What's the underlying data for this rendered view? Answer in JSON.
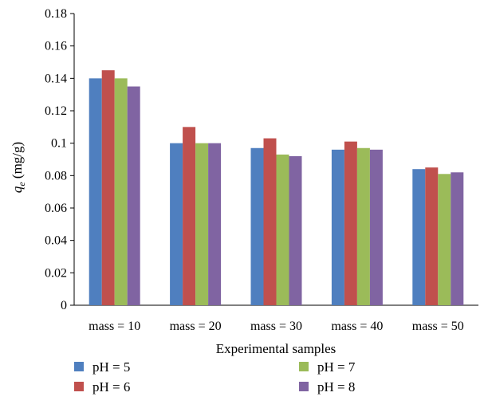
{
  "chart_data": {
    "type": "bar",
    "categories": [
      "mass = 10",
      "mass = 20",
      "mass = 30",
      "mass = 40",
      "mass = 50"
    ],
    "series": [
      {
        "name": "pH = 5",
        "color": "#4F7FBF",
        "values": [
          0.14,
          0.1,
          0.097,
          0.096,
          0.084
        ]
      },
      {
        "name": "pH = 6",
        "color": "#C0504D",
        "values": [
          0.145,
          0.11,
          0.103,
          0.101,
          0.085
        ]
      },
      {
        "name": "pH = 7",
        "color": "#9BBB59",
        "values": [
          0.14,
          0.1,
          0.093,
          0.097,
          0.081
        ]
      },
      {
        "name": "pH = 8",
        "color": "#8064A2",
        "values": [
          0.135,
          0.1,
          0.092,
          0.096,
          0.082
        ]
      }
    ],
    "xlabel": "Experimental samples",
    "ylabel_symbol": "q",
    "ylabel_subscript": "e",
    "ylabel_unit": " (mg/g)",
    "ylim": [
      0,
      0.18
    ],
    "yticks": [
      "0",
      "0.02",
      "0.04",
      "0.06",
      "0.08",
      "0.1",
      "0.12",
      "0.14",
      "0.16",
      "0.18"
    ],
    "grid": false,
    "legend_placement": "bottom"
  }
}
